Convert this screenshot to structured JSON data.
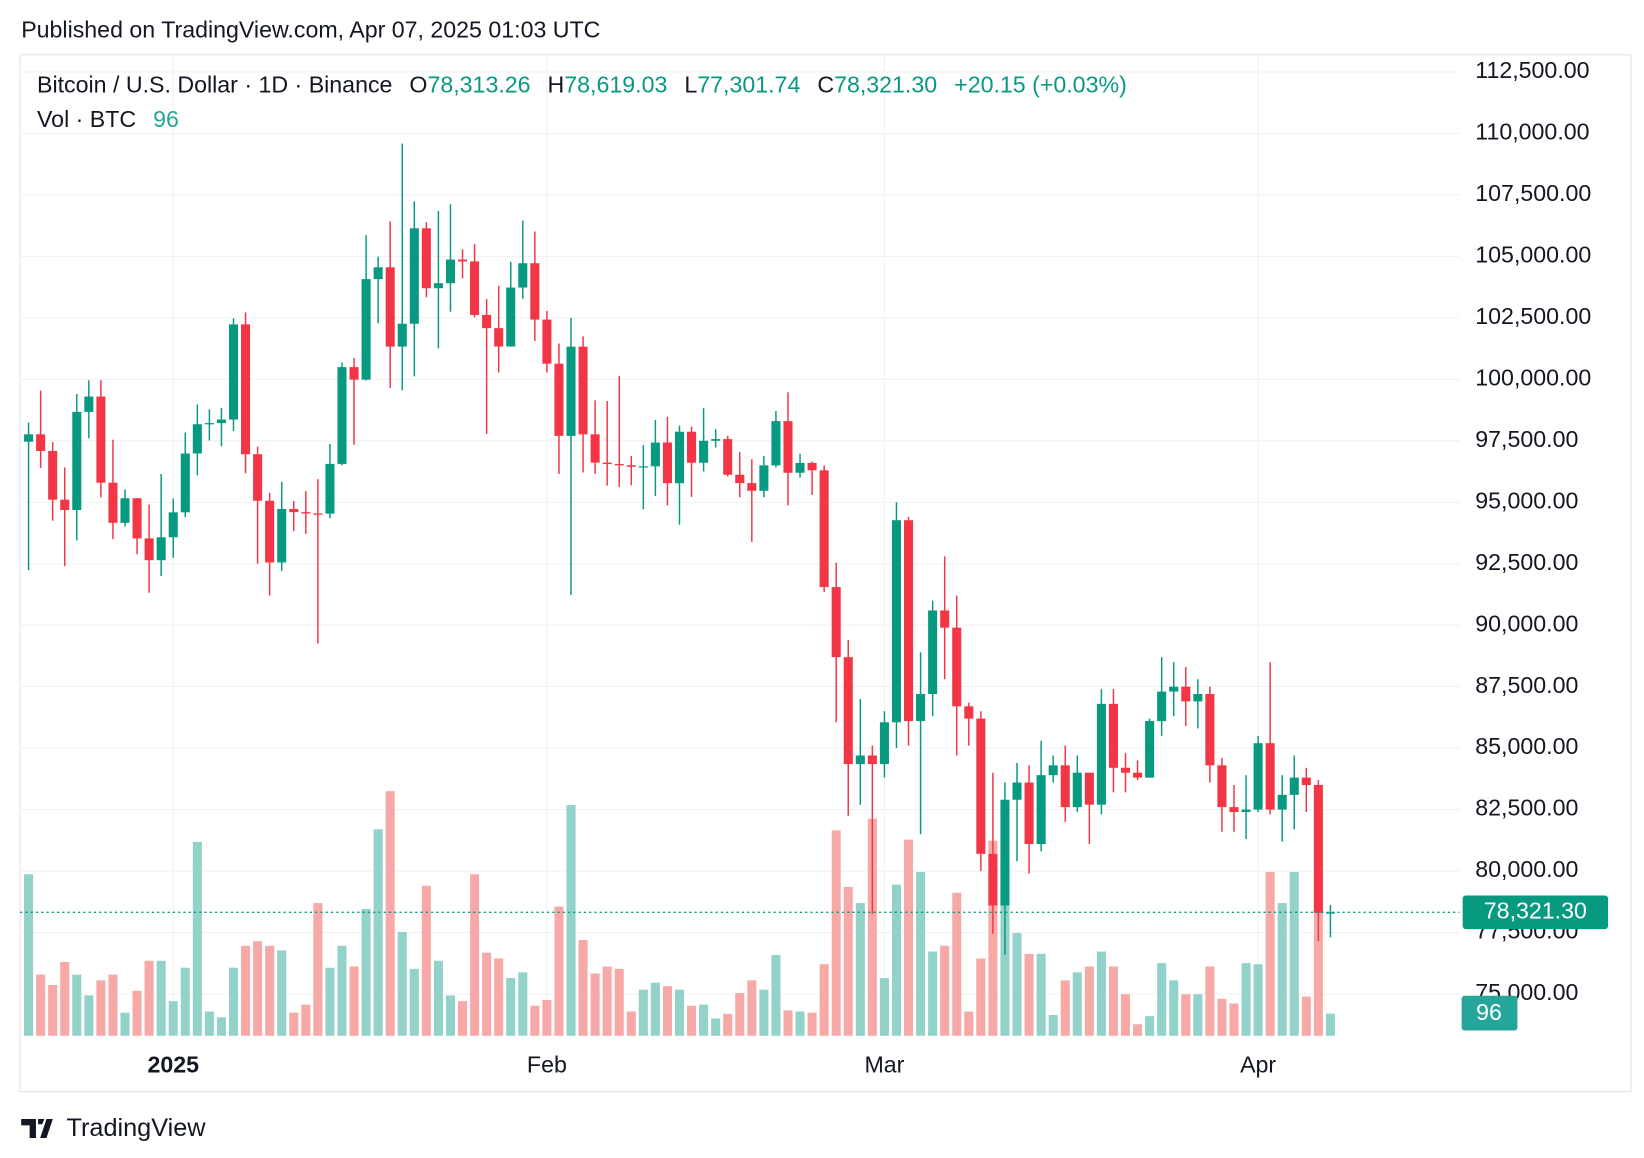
{
  "published": "Published on TradingView.com, Apr 07, 2025 01:03 UTC",
  "brand": "TradingView",
  "chart_data": {
    "type": "candlestick",
    "title": "Bitcoin / U.S. Dollar · 1D · Binance",
    "ohlc_prefixes": [
      "O",
      "H",
      "L",
      "C"
    ],
    "ohlc_labels": [
      "78,313.26",
      "78,619.03",
      "77,301.74",
      "78,321.30"
    ],
    "change_label": "+20.15 (+0.03%)",
    "volume_title": "Vol · BTC",
    "up_color": "#089981",
    "down_color": "#f23645",
    "volume_up_color": "#92d2c8",
    "volume_down_color": "#f7a9a7",
    "grid": true,
    "ylim": [
      73300,
      113200
    ],
    "yticks": [
      {
        "value": 75000,
        "label": "75,000.00"
      },
      {
        "value": 77500,
        "label": "77,500.00"
      },
      {
        "value": 80000,
        "label": "80,000.00"
      },
      {
        "value": 82500,
        "label": "82,500.00"
      },
      {
        "value": 85000,
        "label": "85,000.00"
      },
      {
        "value": 87500,
        "label": "87,500.00"
      },
      {
        "value": 90000,
        "label": "90,000.00"
      },
      {
        "value": 92500,
        "label": "92,500.00"
      },
      {
        "value": 95000,
        "label": "95,000.00"
      },
      {
        "value": 97500,
        "label": "97,500.00"
      },
      {
        "value": 100000,
        "label": "100,000.00"
      },
      {
        "value": 102500,
        "label": "102,500.00"
      },
      {
        "value": 105000,
        "label": "105,000.00"
      },
      {
        "value": 107500,
        "label": "107,500.00"
      },
      {
        "value": 110000,
        "label": "110,000.00"
      },
      {
        "value": 112500,
        "label": "112,500.00"
      }
    ],
    "xticks": [
      {
        "value": 12,
        "label": "2025"
      },
      {
        "value": 43,
        "label": "Feb"
      },
      {
        "value": 71,
        "label": "Mar"
      },
      {
        "value": 102,
        "label": "Apr"
      }
    ],
    "open": [
      97461,
      97763,
      97086,
      95105,
      94686,
      98676,
      99299,
      95795,
      94164,
      95163,
      93530,
      92643,
      93576,
      94591,
      96984,
      98174,
      98220,
      98364,
      102235,
      96954,
      95060,
      92552,
      94726,
      94599,
      94545,
      94536,
      96560,
      100497,
      99987,
      104077,
      104556,
      101331,
      102260,
      106143,
      103706,
      103910,
      104871,
      104796,
      102620,
      102082,
      101335,
      103733,
      104722,
      102429,
      100635,
      97700,
      101328,
      97763,
      96612,
      96554,
      96506,
      96444,
      96462,
      97430,
      95778,
      97869,
      96608,
      97500,
      97569,
      96118,
      95780,
      95467,
      96500,
      98300,
      96200,
      96600,
      96300,
      91550,
      88700,
      84350,
      84700,
      84350,
      86050,
      94270,
      86100,
      87200,
      90600,
      89900,
      86700,
      86200,
      80700,
      78600,
      82900,
      83600,
      81100,
      83900,
      84300,
      82600,
      84000,
      82700,
      86800,
      84200,
      84000,
      83800,
      86100,
      87300,
      87500,
      86900,
      87200,
      84300,
      82600,
      82400,
      82500,
      85200,
      82500,
      83100,
      83800,
      83500,
      78313.26
    ],
    "high": [
      98233,
      99540,
      97448,
      96416,
      99404,
      99960,
      99963,
      97544,
      95525,
      95174,
      94903,
      96150,
      95150,
      97839,
      98976,
      98778,
      98836,
      102480,
      102724,
      97258,
      95382,
      95836,
      95050,
      95450,
      95940,
      97371,
      100681,
      100866,
      105865,
      104988,
      106422,
      109588,
      107240,
      106394,
      106850,
      107120,
      105286,
      105500,
      103260,
      103800,
      104782,
      106457,
      106012,
      102783,
      101456,
      102500,
      101745,
      99149,
      99120,
      100137,
      96880,
      97323,
      98345,
      98478,
      98119,
      98076,
      98826,
      97972,
      97704,
      97046,
      96753,
      96887,
      98711,
      99475,
      96975,
      96659,
      96500,
      92540,
      89400,
      87000,
      85100,
      86500,
      95000,
      94400,
      88900,
      91000,
      92800,
      91200,
      86850,
      86500,
      84000,
      83600,
      84400,
      84300,
      85300,
      84700,
      85100,
      84700,
      84000,
      87400,
      87400,
      84800,
      84500,
      86200,
      88700,
      88500,
      88300,
      87800,
      87500,
      84600,
      83500,
      83900,
      85500,
      88500,
      83900,
      84700,
      84200,
      83700,
      78619.03
    ],
    "low": [
      92232,
      96398,
      94250,
      92403,
      93448,
      97600,
      95200,
      93500,
      94014,
      92881,
      91317,
      92000,
      92743,
      94392,
      96100,
      97514,
      97276,
      97900,
      96181,
      92500,
      91203,
      92206,
      93831,
      93711,
      89256,
      94346,
      96500,
      97335,
      99950,
      102277,
      99651,
      99550,
      100119,
      103339,
      101262,
      102750,
      104106,
      102520,
      97777,
      100272,
      101328,
      103279,
      101560,
      100279,
      96150,
      91231,
      96208,
      96155,
      95676,
      95620,
      95688,
      94713,
      95256,
      94876,
      94088,
      95217,
      96252,
      97223,
      96046,
      95205,
      93388,
      95200,
      96415,
      94871,
      96000,
      95300,
      91350,
      86050,
      82250,
      82700,
      78258,
      83800,
      85000,
      85100,
      81500,
      86300,
      87800,
      84700,
      85100,
      80000,
      77450,
      76600,
      80400,
      79900,
      80800,
      83600,
      82000,
      82400,
      81100,
      82300,
      83200,
      83200,
      83700,
      83800,
      85500,
      86300,
      85900,
      85800,
      83600,
      81600,
      81600,
      81300,
      82400,
      82300,
      81200,
      81700,
      82400,
      77150,
      77301.74
    ],
    "close": [
      97763,
      97086,
      95105,
      94686,
      98676,
      99299,
      95795,
      94164,
      95163,
      93530,
      92643,
      93576,
      94591,
      96984,
      98174,
      98220,
      98364,
      102235,
      96954,
      95060,
      92552,
      94726,
      94599,
      94545,
      94536,
      96560,
      100497,
      99987,
      104077,
      104556,
      101331,
      102260,
      106143,
      103706,
      103910,
      104871,
      104796,
      102620,
      102082,
      101335,
      103733,
      104722,
      102429,
      100635,
      97700,
      101328,
      97763,
      96612,
      96554,
      96506,
      96444,
      96462,
      97430,
      95778,
      97869,
      96608,
      97500,
      97569,
      96118,
      95780,
      95467,
      96500,
      98300,
      96200,
      96600,
      96300,
      91550,
      88700,
      84350,
      84700,
      84350,
      86050,
      94270,
      86100,
      87200,
      90600,
      89900,
      86700,
      86200,
      80700,
      78600,
      82900,
      83600,
      81100,
      83900,
      84300,
      82600,
      84000,
      82700,
      86800,
      84200,
      84000,
      83800,
      86100,
      87300,
      87500,
      86900,
      87200,
      84300,
      82600,
      82400,
      82500,
      85200,
      82500,
      83100,
      83800,
      83500,
      78301.15,
      78321.3
    ],
    "volume": [
      700,
      265,
      220,
      320,
      265,
      175,
      240,
      265,
      100,
      195,
      325,
      325,
      150,
      295,
      840,
      105,
      80,
      295,
      390,
      410,
      390,
      370,
      100,
      135,
      575,
      295,
      390,
      300,
      550,
      895,
      1060,
      450,
      290,
      650,
      325,
      175,
      150,
      700,
      360,
      335,
      250,
      275,
      130,
      155,
      560,
      1000,
      415,
      270,
      300,
      290,
      105,
      200,
      230,
      215,
      200,
      130,
      135,
      75,
      95,
      185,
      240,
      200,
      350,
      110,
      105,
      100,
      310,
      890,
      645,
      575,
      940,
      250,
      655,
      850,
      710,
      365,
      390,
      620,
      105,
      335,
      845,
      645,
      445,
      355,
      355,
      90,
      240,
      275,
      300,
      365,
      300,
      180,
      50,
      85,
      315,
      240,
      180,
      180,
      300,
      160,
      140,
      315,
      310,
      710,
      575,
      710,
      170,
      710,
      96
    ]
  }
}
